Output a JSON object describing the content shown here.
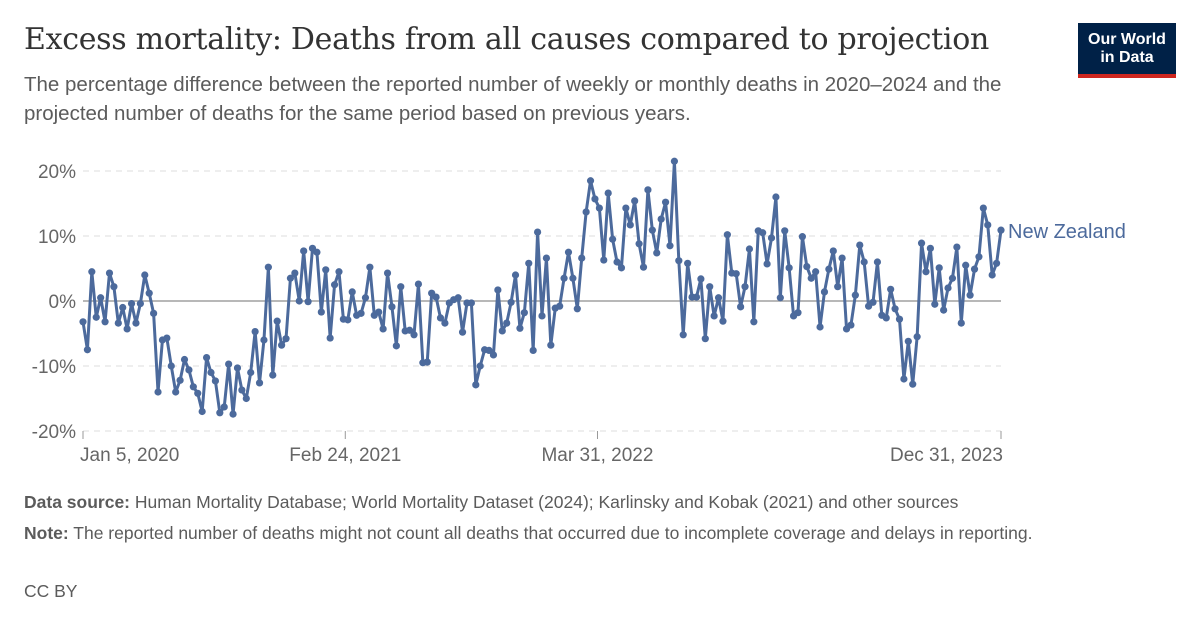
{
  "header": {
    "title": "Excess mortality: Deaths from all causes compared to projection",
    "subtitle": "The percentage difference between the reported number of weekly or monthly deaths in 2020–2024 and the projected number of deaths for the same period based on previous years.",
    "logo_line1": "Our World",
    "logo_line2": "in Data"
  },
  "colors": {
    "series": "#4c6a9c",
    "logo_bg": "#002147",
    "logo_bar": "#ce261e"
  },
  "chart_data": {
    "type": "line",
    "title": "Excess mortality: Deaths from all causes compared to projection",
    "ylim": [
      -20,
      20
    ],
    "y_ticks": [
      "-20%",
      "-10%",
      "0%",
      "10%",
      "20%"
    ],
    "y_tick_values": [
      -20,
      -10,
      0,
      10,
      20
    ],
    "x_ticks": [
      "Jan 5, 2020",
      "Feb 24, 2021",
      "Mar 31, 2022",
      "Dec 31, 2023"
    ],
    "x_tick_dates": [
      "2020-01-05",
      "2021-02-24",
      "2022-03-31",
      "2023-12-31"
    ],
    "grid": "horizontal dashed",
    "legend": "inline label at line end (right)",
    "series": [
      {
        "name": "New Zealand",
        "x": [
          "2020-01-05",
          "2020-01-12",
          "2020-01-19",
          "2020-01-26",
          "2020-02-02",
          "2020-02-09",
          "2020-02-16",
          "2020-02-23",
          "2020-03-01",
          "2020-03-08",
          "2020-03-15",
          "2020-03-22",
          "2020-03-29",
          "2020-04-05",
          "2020-04-12",
          "2020-04-19",
          "2020-04-26",
          "2020-05-03",
          "2020-05-10",
          "2020-05-17",
          "2020-05-24",
          "2020-05-31",
          "2020-06-07",
          "2020-06-14",
          "2020-06-21",
          "2020-06-28",
          "2020-07-05",
          "2020-07-12",
          "2020-07-19",
          "2020-07-26",
          "2020-08-02",
          "2020-08-09",
          "2020-08-16",
          "2020-08-23",
          "2020-08-30",
          "2020-09-06",
          "2020-09-13",
          "2020-09-20",
          "2020-09-27",
          "2020-10-04",
          "2020-10-11",
          "2020-10-18",
          "2020-10-25",
          "2020-11-01",
          "2020-11-08",
          "2020-11-15",
          "2020-11-22",
          "2020-11-29",
          "2020-12-06",
          "2020-12-13",
          "2020-12-20",
          "2020-12-27",
          "2021-01-03",
          "2021-01-10",
          "2021-01-17",
          "2021-01-24",
          "2021-01-31",
          "2021-02-07",
          "2021-02-14",
          "2021-02-21",
          "2021-02-28",
          "2021-03-07",
          "2021-03-14",
          "2021-03-21",
          "2021-03-28",
          "2021-04-04",
          "2021-04-11",
          "2021-04-18",
          "2021-04-25",
          "2021-05-02",
          "2021-05-09",
          "2021-05-16",
          "2021-05-23",
          "2021-05-30",
          "2021-06-06",
          "2021-06-13",
          "2021-06-20",
          "2021-06-27",
          "2021-07-04",
          "2021-07-11",
          "2021-07-18",
          "2021-07-25",
          "2021-08-01",
          "2021-08-08",
          "2021-08-15",
          "2021-08-22",
          "2021-08-29",
          "2021-09-05",
          "2021-09-12",
          "2021-09-19",
          "2021-09-26",
          "2021-10-03",
          "2021-10-10",
          "2021-10-17",
          "2021-10-24",
          "2021-10-31",
          "2021-11-07",
          "2021-11-14",
          "2021-11-21",
          "2021-11-28",
          "2021-12-05",
          "2021-12-12",
          "2021-12-19",
          "2021-12-26",
          "2022-01-02",
          "2022-01-09",
          "2022-01-16",
          "2022-01-23",
          "2022-01-30",
          "2022-02-06",
          "2022-02-13",
          "2022-02-20",
          "2022-02-27",
          "2022-03-06",
          "2022-03-13",
          "2022-03-20",
          "2022-03-27",
          "2022-04-03",
          "2022-04-10",
          "2022-04-17",
          "2022-04-24",
          "2022-05-01",
          "2022-05-08",
          "2022-05-15",
          "2022-05-22",
          "2022-05-29",
          "2022-06-05",
          "2022-06-12",
          "2022-06-19",
          "2022-06-26",
          "2022-07-03",
          "2022-07-10",
          "2022-07-17",
          "2022-07-24",
          "2022-07-31",
          "2022-08-07",
          "2022-08-14",
          "2022-08-21",
          "2022-08-28",
          "2022-09-04",
          "2022-09-11",
          "2022-09-18",
          "2022-09-25",
          "2022-10-02",
          "2022-10-09",
          "2022-10-16",
          "2022-10-23",
          "2022-10-30",
          "2022-11-06",
          "2022-11-13",
          "2022-11-20",
          "2022-11-27",
          "2022-12-04",
          "2022-12-11",
          "2022-12-18",
          "2022-12-25",
          "2023-01-01",
          "2023-01-08",
          "2023-01-15",
          "2023-01-22",
          "2023-01-29",
          "2023-02-05",
          "2023-02-12",
          "2023-02-19",
          "2023-02-26",
          "2023-03-05",
          "2023-03-12",
          "2023-03-19",
          "2023-03-26",
          "2023-04-02",
          "2023-04-09",
          "2023-04-16",
          "2023-04-23",
          "2023-04-30",
          "2023-05-07",
          "2023-05-14",
          "2023-05-21",
          "2023-05-28",
          "2023-06-04",
          "2023-06-11",
          "2023-06-18",
          "2023-06-25",
          "2023-07-02",
          "2023-07-09",
          "2023-07-16",
          "2023-07-23",
          "2023-07-30",
          "2023-08-06",
          "2023-08-13",
          "2023-08-20",
          "2023-08-27",
          "2023-09-03",
          "2023-09-10",
          "2023-09-17",
          "2023-09-24",
          "2023-10-01",
          "2023-10-08",
          "2023-10-15",
          "2023-10-22",
          "2023-10-29",
          "2023-11-05",
          "2023-11-12",
          "2023-11-19",
          "2023-11-26",
          "2023-12-03",
          "2023-12-10",
          "2023-12-17",
          "2023-12-24",
          "2023-12-31"
        ],
        "values": [
          -3.2,
          -7.5,
          4.5,
          -2.5,
          0.5,
          -3.2,
          4.3,
          2.2,
          -3.4,
          -1,
          -4.3,
          -0.4,
          -3.4,
          -0.4,
          4,
          1.2,
          -1.9,
          -14,
          -6,
          -5.7,
          -10,
          -14,
          -12.2,
          -9,
          -10.6,
          -13.2,
          -14.2,
          -17,
          -8.7,
          -11,
          -12.3,
          -17.2,
          -16.3,
          -9.7,
          -17.4,
          -10.3,
          -13.7,
          -15,
          -11,
          -4.7,
          -12.6,
          -6,
          5.2,
          -11.4,
          -3.1,
          -6.8,
          -5.8,
          3.5,
          4.3,
          0,
          7.7,
          -0.1,
          8.1,
          7.5,
          -1.7,
          4.8,
          -5.7,
          2.5,
          4.5,
          -2.8,
          -2.9,
          1.4,
          -2.2,
          -1.9,
          0.5,
          5.2,
          -2.2,
          -1.7,
          -4.3,
          4.3,
          -0.9,
          -6.9,
          2.2,
          -4.6,
          -4.5,
          -5.2,
          2.6,
          -9.5,
          -9.4,
          1.2,
          0.6,
          -2.6,
          -3.4,
          -0.3,
          0.2,
          0.5,
          -4.8,
          -0.3,
          -0.3,
          -12.9,
          -10,
          -7.5,
          -7.6,
          -8.3,
          1.7,
          -4.6,
          -3.4,
          -0.2,
          4,
          -4.2,
          -1.8,
          5.8,
          -7.6,
          10.6,
          -2.3,
          6.6,
          -6.8,
          -1.1,
          -0.8,
          3.5,
          7.5,
          3.5,
          -1.2,
          6.6,
          13.7,
          18.5,
          15.7,
          14.3,
          6.3,
          16.6,
          9.5,
          6,
          5.1,
          14.3,
          11.7,
          15.4,
          8.8,
          5.2,
          17.1,
          10.9,
          7.4,
          12.6,
          15.2,
          8.5,
          21.5,
          6.2,
          -5.2,
          5.8,
          0.6,
          0.6,
          3.4,
          -5.8,
          2.2,
          -2.3,
          0.5,
          -3.1,
          10.2,
          4.3,
          4.2,
          -0.9,
          2.2,
          8,
          -3.2,
          10.8,
          10.5,
          5.7,
          9.7,
          16,
          0.5,
          10.8,
          5.1,
          -2.3,
          -1.8,
          9.9,
          5.3,
          3.5,
          4.5,
          -4,
          1.4,
          4.9,
          7.7,
          2.2,
          6.6,
          -4.3,
          -3.7,
          0.9,
          8.6,
          6,
          -0.8,
          -0.2,
          6,
          -2.2,
          -2.6,
          1.8,
          -1.2,
          -2.8,
          -12,
          -6.2,
          -12.8,
          -5.5,
          8.9,
          4.5,
          8.1,
          -0.5,
          5.1,
          -1.4,
          2,
          3.5,
          8.3,
          -3.4,
          5.5,
          0.9,
          4.9,
          6.8,
          14.3,
          11.7,
          4,
          5.8,
          10.9
        ]
      }
    ]
  },
  "footer": {
    "source_label": "Data source:",
    "source_text": "Human Mortality Database; World Mortality Dataset (2024); Karlinsky and Kobak (2021) and other sources",
    "note_label": "Note:",
    "note_text": "The reported number of deaths might not count all deaths that occurred due to incomplete coverage and delays in reporting.",
    "license": "CC BY"
  }
}
